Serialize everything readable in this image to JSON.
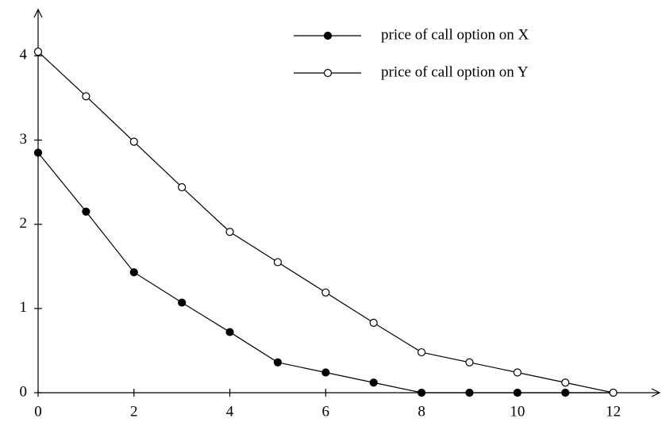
{
  "chart_data": {
    "type": "line",
    "x": [
      0,
      1,
      2,
      3,
      4,
      5,
      6,
      7,
      8,
      9,
      10,
      11,
      12
    ],
    "series": [
      {
        "name": "price of call option on X",
        "color": "#000000",
        "marker": "filled",
        "values": [
          2.85,
          2.15,
          1.43,
          1.07,
          0.72,
          0.36,
          0.24,
          0.12,
          0,
          0,
          0,
          0,
          0
        ]
      },
      {
        "name": "price of call option on Y",
        "color": "#000000",
        "marker": "open",
        "values": [
          4.05,
          3.52,
          2.98,
          2.44,
          1.91,
          1.55,
          1.19,
          0.83,
          0.48,
          0.36,
          0.24,
          0.12,
          0
        ]
      }
    ],
    "xlim": [
      0,
      13
    ],
    "xticks": [
      0,
      2,
      4,
      6,
      8,
      10,
      12
    ],
    "ylim": [
      0,
      4.55
    ],
    "yticks": [
      0,
      1,
      2,
      3,
      4
    ],
    "grid": false,
    "legend": "upper right"
  }
}
